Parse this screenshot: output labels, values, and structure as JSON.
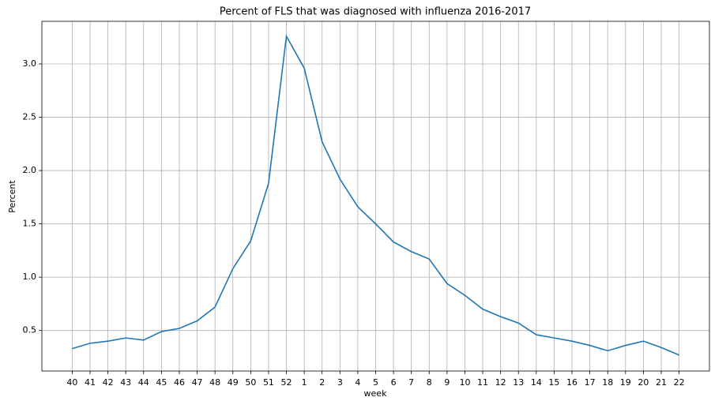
{
  "chart_data": {
    "type": "line",
    "title": "Percent of FLS that was diagnosed with influenza 2016-2017",
    "xlabel": "week",
    "ylabel": "Percent",
    "categories": [
      "40",
      "41",
      "42",
      "43",
      "44",
      "45",
      "46",
      "47",
      "48",
      "49",
      "50",
      "51",
      "52",
      "1",
      "2",
      "3",
      "4",
      "5",
      "6",
      "7",
      "8",
      "9",
      "10",
      "11",
      "12",
      "13",
      "14",
      "15",
      "16",
      "17",
      "18",
      "19",
      "20",
      "21",
      "22"
    ],
    "values": [
      0.33,
      0.38,
      0.4,
      0.43,
      0.41,
      0.49,
      0.52,
      0.59,
      0.72,
      1.08,
      1.34,
      1.88,
      3.26,
      2.96,
      2.27,
      1.92,
      1.66,
      1.5,
      1.33,
      1.24,
      1.17,
      0.94,
      0.83,
      0.7,
      0.63,
      0.57,
      0.46,
      0.43,
      0.4,
      0.36,
      0.31,
      0.36,
      0.4,
      0.34,
      0.27
    ],
    "color": "#1f77b4",
    "ylim": [
      0.12,
      3.4
    ],
    "yticks": [
      0.5,
      {
        "value": 1,
        "label": "1.0"
      },
      1.5,
      {
        "value": 2,
        "label": "2.0"
      },
      2.5,
      {
        "value": 3,
        "label": "3.0"
      }
    ],
    "grid": true
  }
}
